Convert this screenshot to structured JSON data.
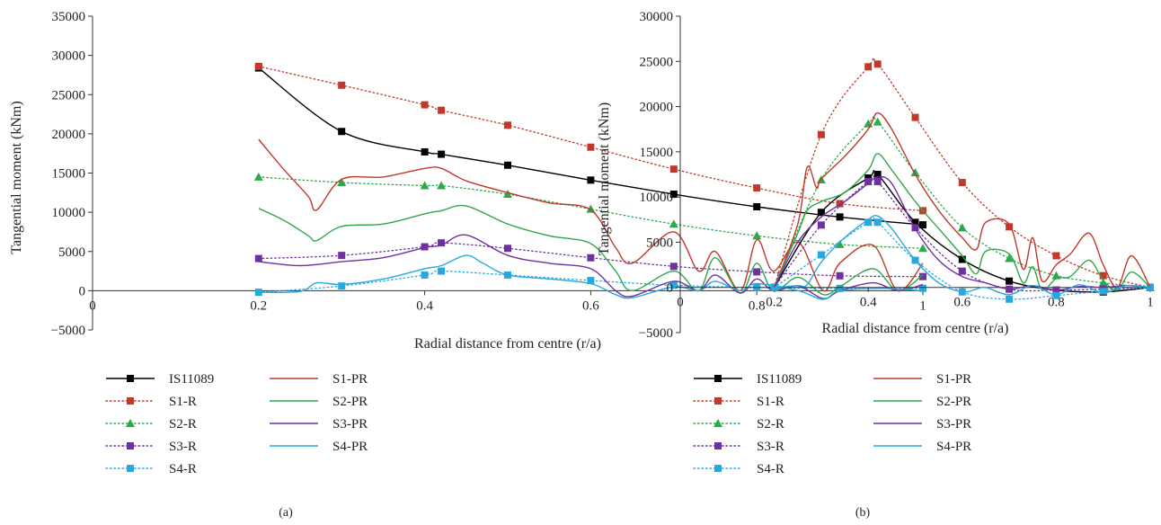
{
  "figure": {
    "panel_labels": [
      "(a)",
      "(b)"
    ]
  },
  "legend": {
    "series_order": [
      "IS11089",
      "S1-R",
      "S2-R",
      "S3-R",
      "S4-R",
      "S1-PR",
      "S2-PR",
      "S3-PR",
      "S4-PR"
    ]
  },
  "styles": {
    "IS11089": {
      "color": "#000000",
      "dash": "solid",
      "marker": "square"
    },
    "S1-R": {
      "color": "#c0392b",
      "dash": "dotted",
      "marker": "square"
    },
    "S2-R": {
      "color": "#2ea84a",
      "dash": "dotted",
      "marker": "triangle"
    },
    "S3-R": {
      "color": "#7030a0",
      "dash": "dotted",
      "marker": "square"
    },
    "S4-R": {
      "color": "#29a8e0",
      "dash": "dotted",
      "marker": "square"
    },
    "S1-PR": {
      "color": "#c0392b",
      "dash": "solid",
      "marker": "none"
    },
    "S2-PR": {
      "color": "#2ea84a",
      "dash": "solid",
      "marker": "none"
    },
    "S3-PR": {
      "color": "#7030a0",
      "dash": "solid",
      "marker": "none"
    },
    "S4-PR": {
      "color": "#29a8e0",
      "dash": "solid",
      "marker": "none"
    }
  },
  "chart_data": [
    {
      "type": "line",
      "panel": "(a)",
      "ylabel": "Tangential moment (kNm)",
      "xlabel": "Radial distance from centre (r/a)",
      "xlim": [
        0,
        1
      ],
      "ylim": [
        -5000,
        35000
      ],
      "x_ticks": [
        0,
        0.2,
        0.4,
        0.6,
        0.8,
        1
      ],
      "x_tick_labels": [
        "0",
        "0.2",
        "0.4",
        "0.6",
        "0.8",
        "1"
      ],
      "y_ticks": [
        -5000,
        0,
        5000,
        10000,
        15000,
        20000,
        25000,
        30000,
        35000
      ],
      "y_tick_labels": [
        "−5000",
        "0",
        "5000",
        "10000",
        "15000",
        "20000",
        "25000",
        "30000",
        "35000"
      ],
      "grid": false,
      "legend_position": "bottom",
      "series": [
        {
          "name": "IS11089",
          "x": [
            0.2,
            0.3,
            0.4,
            0.42,
            0.5,
            0.6,
            0.7,
            0.8,
            0.9,
            1.0
          ],
          "y": [
            28400,
            20300,
            17700,
            17400,
            16000,
            14100,
            12300,
            10700,
            9400,
            8400
          ]
        },
        {
          "name": "S1-R",
          "x": [
            0.2,
            0.3,
            0.4,
            0.42,
            0.5,
            0.6,
            0.7,
            0.8,
            0.9,
            1.0
          ],
          "y": [
            28600,
            26200,
            23700,
            23000,
            21100,
            18300,
            15500,
            13100,
            11100,
            10200
          ]
        },
        {
          "name": "S2-R",
          "x": [
            0.2,
            0.3,
            0.4,
            0.42,
            0.5,
            0.6,
            0.7,
            0.8,
            0.9,
            1.0
          ],
          "y": [
            14500,
            13800,
            13400,
            13400,
            12300,
            10400,
            8500,
            7000,
            5900,
            5400
          ]
        },
        {
          "name": "S3-R",
          "x": [
            0.2,
            0.3,
            0.4,
            0.42,
            0.5,
            0.6,
            0.7,
            0.8,
            0.9,
            1.0
          ],
          "y": [
            4100,
            4500,
            5600,
            6100,
            5400,
            4200,
            3100,
            2400,
            1900,
            1800
          ]
        },
        {
          "name": "S4-R",
          "x": [
            0.2,
            0.3,
            0.4,
            0.42,
            0.5,
            0.6,
            0.7,
            0.8,
            0.9,
            1.0
          ],
          "y": [
            -200,
            600,
            2000,
            2500,
            2000,
            1300,
            700,
            400,
            300,
            300
          ]
        },
        {
          "name": "S1-PR",
          "x": [
            0.2,
            0.23,
            0.26,
            0.27,
            0.3,
            0.35,
            0.4,
            0.42,
            0.45,
            0.5,
            0.55,
            0.6,
            0.63,
            0.65,
            0.7,
            0.73,
            0.75,
            0.78,
            0.8,
            0.82,
            0.85,
            0.88,
            0.9,
            0.94,
            0.97,
            1.0
          ],
          "y": [
            19300,
            15500,
            12000,
            10300,
            14200,
            14500,
            15600,
            15600,
            14000,
            12500,
            11200,
            10300,
            5500,
            3500,
            7500,
            2500,
            5000,
            0,
            6500,
            2500,
            6200,
            0,
            3500,
            5800,
            0,
            3500
          ]
        },
        {
          "name": "S2-PR",
          "x": [
            0.2,
            0.23,
            0.26,
            0.27,
            0.3,
            0.35,
            0.4,
            0.42,
            0.45,
            0.5,
            0.55,
            0.6,
            0.63,
            0.65,
            0.7,
            0.73,
            0.75,
            0.78,
            0.8,
            0.82,
            0.85,
            0.88,
            0.9,
            0.94,
            0.97,
            1.0
          ],
          "y": [
            10500,
            9000,
            7000,
            6400,
            8200,
            8500,
            9800,
            10200,
            10800,
            8500,
            7000,
            6000,
            2500,
            0,
            2500,
            0,
            4200,
            -300,
            3500,
            0,
            1700,
            -500,
            500,
            2800,
            0,
            2000
          ]
        },
        {
          "name": "S3-PR",
          "x": [
            0.2,
            0.25,
            0.3,
            0.35,
            0.4,
            0.42,
            0.45,
            0.5,
            0.55,
            0.6,
            0.63,
            0.65,
            0.7,
            0.73,
            0.75,
            0.78,
            0.8,
            0.82,
            0.85,
            0.88,
            0.9,
            0.94,
            0.97,
            1.0
          ],
          "y": [
            3700,
            3200,
            3700,
            4200,
            5500,
            5800,
            7100,
            4500,
            3500,
            2800,
            0,
            -700,
            1200,
            0,
            2000,
            -300,
            1500,
            0,
            600,
            -1000,
            0,
            1000,
            0,
            800
          ]
        },
        {
          "name": "S4-PR",
          "x": [
            0.2,
            0.25,
            0.27,
            0.3,
            0.35,
            0.4,
            0.42,
            0.45,
            0.47,
            0.5,
            0.55,
            0.6,
            0.63,
            0.65,
            0.7,
            0.73,
            0.75,
            0.78,
            0.8,
            0.85,
            0.88,
            0.9,
            0.95,
            1.0
          ],
          "y": [
            -200,
            -100,
            1000,
            800,
            1500,
            2800,
            3200,
            4500,
            3500,
            2000,
            1500,
            900,
            -500,
            -900,
            500,
            0,
            1200,
            0,
            900,
            0,
            -1100,
            0,
            300,
            0
          ]
        }
      ]
    },
    {
      "type": "line",
      "panel": "(b)",
      "ylabel": "Tangential moment (kNm)",
      "xlabel": "Radial distance from centre (r/a)",
      "xlim": [
        0,
        1
      ],
      "ylim": [
        -5000,
        30000
      ],
      "x_ticks": [
        0,
        0.2,
        0.4,
        0.6,
        0.8,
        1
      ],
      "x_tick_labels": [
        "0",
        "0.2",
        "0.4",
        "0.6",
        "0.8",
        "1"
      ],
      "y_ticks": [
        -5000,
        0,
        5000,
        10000,
        15000,
        20000,
        25000,
        30000
      ],
      "y_tick_labels": [
        "−5000",
        "0",
        "5000",
        "10000",
        "15000",
        "20000",
        "25000",
        "30000"
      ],
      "grid": false,
      "legend_position": "bottom",
      "series": [
        {
          "name": "IS11089",
          "x": [
            0.2,
            0.3,
            0.4,
            0.42,
            0.5,
            0.6,
            0.7,
            0.8,
            0.9,
            1.0
          ],
          "y": [
            0,
            8300,
            12100,
            12500,
            7200,
            3100,
            700,
            -300,
            -500,
            0
          ]
        },
        {
          "name": "S1-R",
          "x": [
            0.2,
            0.3,
            0.4,
            0.42,
            0.5,
            0.6,
            0.7,
            0.8,
            0.9,
            1.0
          ],
          "y": [
            0,
            16900,
            24400,
            24700,
            18800,
            11600,
            6700,
            3500,
            1300,
            0
          ]
        },
        {
          "name": "S2-R",
          "x": [
            0.2,
            0.3,
            0.4,
            0.42,
            0.5,
            0.6,
            0.7,
            0.8,
            0.9,
            1.0
          ],
          "y": [
            0,
            11900,
            18100,
            18300,
            12700,
            6600,
            3200,
            1300,
            500,
            0
          ]
        },
        {
          "name": "S3-R",
          "x": [
            0.2,
            0.3,
            0.4,
            0.42,
            0.5,
            0.6,
            0.7,
            0.8,
            0.9,
            1.0
          ],
          "y": [
            0,
            6900,
            11700,
            11700,
            6600,
            1800,
            -200,
            -300,
            -200,
            0
          ]
        },
        {
          "name": "S4-R",
          "x": [
            0.2,
            0.3,
            0.4,
            0.42,
            0.5,
            0.6,
            0.7,
            0.8,
            0.9,
            1.0
          ],
          "y": [
            0,
            3600,
            7200,
            7200,
            3000,
            -500,
            -1300,
            -900,
            -400,
            0
          ]
        },
        {
          "name": "S1-PR",
          "x": [
            0.2,
            0.25,
            0.27,
            0.29,
            0.3,
            0.35,
            0.4,
            0.42,
            0.45,
            0.5,
            0.55,
            0.6,
            0.63,
            0.65,
            0.7,
            0.73,
            0.75,
            0.77,
            0.8,
            0.83,
            0.87,
            0.9,
            0.93,
            0.96,
            1.0
          ],
          "y": [
            0,
            7000,
            13300,
            11000,
            12000,
            14500,
            17500,
            19300,
            17500,
            12500,
            8500,
            5500,
            4200,
            7200,
            7000,
            2000,
            5500,
            700,
            2500,
            3700,
            6000,
            2500,
            0,
            3500,
            0
          ]
        },
        {
          "name": "S2-PR",
          "x": [
            0.2,
            0.25,
            0.27,
            0.3,
            0.35,
            0.4,
            0.42,
            0.45,
            0.5,
            0.55,
            0.6,
            0.63,
            0.65,
            0.7,
            0.73,
            0.75,
            0.77,
            0.8,
            0.83,
            0.87,
            0.9,
            0.93,
            0.96,
            1.0
          ],
          "y": [
            0,
            6000,
            8500,
            9500,
            10500,
            13000,
            14800,
            13000,
            9500,
            6500,
            3500,
            1500,
            4000,
            3700,
            500,
            2300,
            -300,
            1000,
            1200,
            3000,
            800,
            -300,
            1700,
            0
          ]
        },
        {
          "name": "S3-PR",
          "x": [
            0.2,
            0.25,
            0.3,
            0.35,
            0.4,
            0.42,
            0.45,
            0.5,
            0.55,
            0.6,
            0.65,
            0.7,
            0.75,
            0.8,
            0.85,
            0.9,
            0.95,
            1.0
          ],
          "y": [
            0,
            5000,
            7800,
            9500,
            11500,
            12200,
            11500,
            6500,
            3000,
            1200,
            500,
            -200,
            200,
            -300,
            100,
            0,
            200,
            0
          ]
        },
        {
          "name": "S4-PR",
          "x": [
            0.2,
            0.25,
            0.27,
            0.3,
            0.35,
            0.4,
            0.42,
            0.45,
            0.5,
            0.55,
            0.6,
            0.63,
            0.65,
            0.7,
            0.75,
            0.8,
            0.85,
            0.9,
            0.95,
            1.0
          ],
          "y": [
            0,
            200,
            300,
            2800,
            5500,
            7500,
            7900,
            6500,
            3000,
            500,
            -500,
            -200,
            0,
            -800,
            200,
            -800,
            300,
            -600,
            200,
            0
          ]
        }
      ]
    }
  ]
}
